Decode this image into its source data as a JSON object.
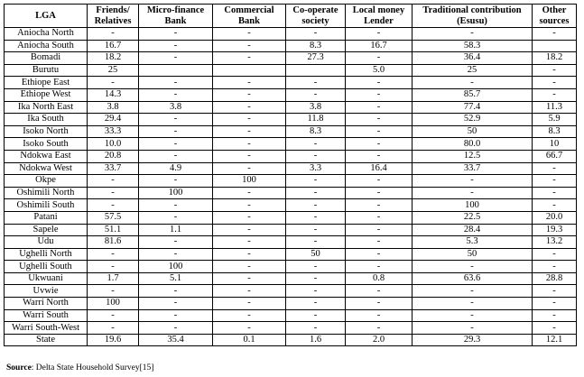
{
  "table": {
    "headers": [
      "LGA",
      "Friends/ Relatives",
      "Micro-finance Bank",
      "Commercial Bank",
      "Co-operate society",
      "Local money Lender",
      "Traditional contribution (Esusu)",
      "Other sources"
    ],
    "rows": [
      [
        "Aniocha North",
        "-",
        "-",
        "-",
        "-",
        "-",
        "-",
        "-"
      ],
      [
        "Aniocha South",
        "16.7",
        "-",
        "-",
        "8.3",
        "16.7",
        "58.3",
        ""
      ],
      [
        "Bomadi",
        "18.2",
        "-",
        "-",
        "27.3",
        "-",
        "36.4",
        "18.2"
      ],
      [
        "Burutu",
        "25",
        "",
        "",
        "",
        "5.0",
        "25",
        "-"
      ],
      [
        "Ethiope East",
        "-",
        "-",
        "-",
        "-",
        "-",
        "-",
        "-"
      ],
      [
        "Ethiope West",
        "14.3",
        "-",
        "-",
        "-",
        "-",
        "85.7",
        "-"
      ],
      [
        "Ika North East",
        "3.8",
        "3.8",
        "-",
        "3.8",
        "-",
        "77.4",
        "11.3"
      ],
      [
        "Ika South",
        "29.4",
        "-",
        "-",
        "11.8",
        "-",
        "52.9",
        "5.9"
      ],
      [
        "Isoko North",
        "33.3",
        "-",
        "-",
        "8.3",
        "-",
        "50",
        "8.3"
      ],
      [
        "Isoko South",
        "10.0",
        "-",
        "-",
        "-",
        "-",
        "80.0",
        "10"
      ],
      [
        "Ndokwa East",
        "20.8",
        "-",
        "-",
        "-",
        "-",
        "12.5",
        "66.7"
      ],
      [
        "Ndokwa West",
        "33.7",
        "4.9",
        "-",
        "3.3",
        "16.4",
        "33.7",
        "-"
      ],
      [
        "Okpe",
        "-",
        "-",
        "100",
        "-",
        "-",
        "-",
        "-"
      ],
      [
        "Oshimili North",
        "-",
        "100",
        "-",
        "-",
        "-",
        "-",
        "-"
      ],
      [
        "Oshimili South",
        "-",
        "-",
        "-",
        "-",
        "-",
        "100",
        "-"
      ],
      [
        "Patani",
        "57.5",
        "-",
        "-",
        "-",
        "-",
        "22.5",
        "20.0"
      ],
      [
        "Sapele",
        "51.1",
        "1.1",
        "-",
        "-",
        "-",
        "28.4",
        "19.3"
      ],
      [
        "Udu",
        "81.6",
        "-",
        "-",
        "-",
        "-",
        "5.3",
        "13.2"
      ],
      [
        "Ughelli North",
        "-",
        "-",
        "-",
        "50",
        "-",
        "50",
        "-"
      ],
      [
        "Ughelli South",
        "-",
        "100",
        "-",
        "-",
        "-",
        "-",
        "-"
      ],
      [
        "Ukwuani",
        "1.7",
        "5.1",
        "-",
        "-",
        "0.8",
        "63.6",
        "28.8"
      ],
      [
        "Uvwie",
        "-",
        "-",
        "-",
        "-",
        "-",
        "-",
        "-"
      ],
      [
        "Warri North",
        "100",
        "-",
        "-",
        "-",
        "-",
        "-",
        "-"
      ],
      [
        "Warri South",
        "-",
        "-",
        "-",
        "-",
        "-",
        "-",
        "-"
      ],
      [
        "Warri South-West",
        "-",
        "-",
        "-",
        "-",
        "-",
        "-",
        "-"
      ],
      [
        "State",
        "19.6",
        "35.4",
        "0.1",
        "1.6",
        "2.0",
        "29.3",
        "12.1"
      ]
    ]
  },
  "source": {
    "label": "Source",
    "text": ": Delta State Household Survey[15]"
  }
}
